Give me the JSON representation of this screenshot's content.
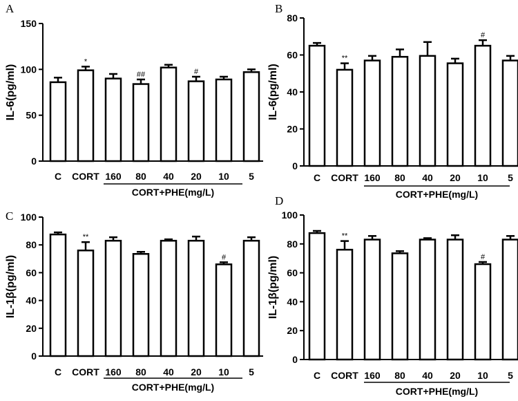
{
  "figure": {
    "group_label": "CORT+PHE(mg/L)"
  },
  "chart_data": [
    {
      "panel": "A",
      "type": "bar",
      "ylabel": "IL-6(pg/ml)",
      "ylim": [
        0,
        150
      ],
      "yticks": [
        0,
        50,
        100,
        150
      ],
      "categories": [
        "C",
        "CORT",
        "160",
        "80",
        "40",
        "20",
        "10",
        "5"
      ],
      "values": [
        86,
        99,
        90,
        84,
        102,
        87,
        89,
        97
      ],
      "errors": [
        5,
        4,
        5,
        5,
        3,
        5,
        3,
        3
      ],
      "significance": [
        "",
        "*",
        "",
        "##",
        "",
        "#",
        "",
        ""
      ],
      "group_label": "CORT+PHE(mg/L)"
    },
    {
      "panel": "B",
      "type": "bar",
      "ylabel": "IL-6(pg/ml)",
      "ylim": [
        0,
        80
      ],
      "yticks": [
        0,
        20,
        40,
        60,
        80
      ],
      "categories": [
        "C",
        "CORT",
        "160",
        "80",
        "40",
        "20",
        "10",
        "5"
      ],
      "values": [
        65,
        52,
        57,
        59,
        59.5,
        55.5,
        65,
        57
      ],
      "errors": [
        1.5,
        3.5,
        2.5,
        4,
        7.5,
        2.5,
        3,
        2.5
      ],
      "significance": [
        "",
        "**",
        "",
        "",
        "",
        "",
        "#",
        ""
      ],
      "group_label": "CORT+PHE(mg/L)"
    },
    {
      "panel": "C",
      "type": "bar",
      "ylabel": "IL-1β(pg/ml)",
      "ylim": [
        0,
        100
      ],
      "yticks": [
        0,
        20,
        40,
        60,
        80,
        100
      ],
      "categories": [
        "C",
        "CORT",
        "160",
        "80",
        "40",
        "20",
        "10",
        "5"
      ],
      "values": [
        87.5,
        76,
        83,
        73.5,
        83,
        83,
        66,
        83
      ],
      "errors": [
        1.5,
        6,
        2.5,
        1.5,
        1,
        3,
        1.5,
        2.5
      ],
      "significance": [
        "",
        "**",
        "",
        "",
        "",
        "",
        "#",
        ""
      ],
      "group_label": "CORT+PHE(mg/L)"
    },
    {
      "panel": "D",
      "type": "bar",
      "ylabel": "IL-1β(pg/ml)",
      "ylim": [
        0,
        100
      ],
      "yticks": [
        0,
        20,
        40,
        60,
        80,
        100
      ],
      "categories": [
        "C",
        "CORT",
        "160",
        "80",
        "40",
        "20",
        "10",
        "5"
      ],
      "values": [
        87.5,
        76,
        83,
        73.5,
        83,
        83,
        66,
        83
      ],
      "errors": [
        1.5,
        6,
        2.5,
        1.5,
        1,
        3,
        1.5,
        2.5
      ],
      "significance": [
        "",
        "**",
        "",
        "",
        "",
        "",
        "#",
        ""
      ],
      "group_label": "CORT+PHE(mg/L)"
    }
  ]
}
